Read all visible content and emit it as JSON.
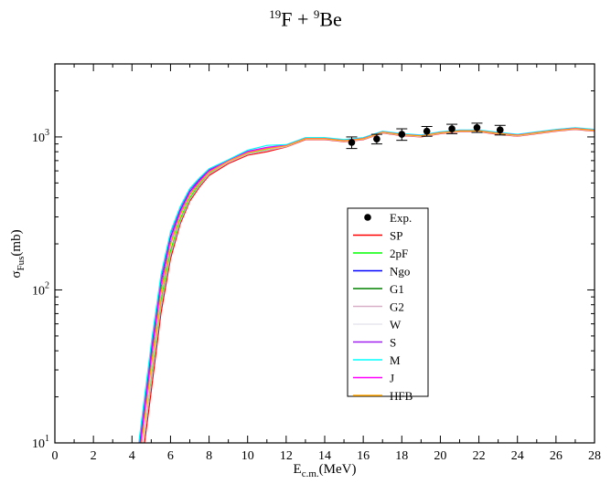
{
  "title": {
    "a_mass": "19",
    "a_symbol": "F",
    "plus": " + ",
    "b_mass": "9",
    "b_symbol": "Be"
  },
  "chart_data": {
    "type": "line",
    "xlabel": {
      "main": "E",
      "sub": "c.m.",
      "unit": "(MeV)"
    },
    "ylabel": {
      "main": "σ",
      "sub": "Fus",
      "unit": "(mb)"
    },
    "xlim": [
      0,
      28
    ],
    "ylim": [
      10,
      3000
    ],
    "yscale": "log",
    "x_ticks": [
      0,
      2,
      4,
      6,
      8,
      10,
      12,
      14,
      16,
      18,
      20,
      22,
      24,
      26,
      28
    ],
    "y_ticks": [
      {
        "value": 10,
        "base": "10",
        "exp": "1"
      },
      {
        "value": 100,
        "base": "10",
        "exp": "2"
      },
      {
        "value": 1000,
        "base": "10",
        "exp": "3"
      }
    ],
    "grid": false,
    "legend_position": "center",
    "experiment": {
      "name": "Exp.",
      "x": [
        15.4,
        16.7,
        18.0,
        19.3,
        20.6,
        21.9,
        23.1
      ],
      "y": [
        920,
        970,
        1040,
        1090,
        1130,
        1150,
        1110
      ],
      "err": [
        80,
        70,
        90,
        80,
        80,
        80,
        80
      ]
    },
    "series": [
      {
        "name": "SP",
        "color": "#ff0000",
        "x": [
          4.65,
          5.0,
          5.5,
          6.0,
          6.5,
          7.0,
          7.5,
          8.0,
          9.0,
          10.0,
          11.0,
          12.0,
          13.0,
          14.0,
          15.0,
          16.0,
          17.0,
          18.0,
          19.0,
          20.0,
          21.0,
          22.0,
          23.0,
          24.0,
          25.0,
          26.0,
          27.0,
          28.0
        ],
        "y": [
          10,
          22,
          70,
          160,
          270,
          380,
          470,
          560,
          670,
          760,
          800,
          860,
          960,
          960,
          930,
          960,
          1060,
          1020,
          1000,
          1050,
          1080,
          1080,
          1040,
          1010,
          1050,
          1090,
          1120,
          1090
        ]
      },
      {
        "name": "2pF",
        "color": "#00ff00",
        "x": [
          4.55,
          5.0,
          5.5,
          6.0,
          6.5,
          7.0,
          7.5,
          8.0,
          9.0,
          10.0,
          11.0,
          12.0,
          13.0,
          14.0,
          15.0,
          16.0,
          17.0,
          18.0,
          19.0,
          20.0,
          21.0,
          22.0,
          23.0,
          24.0,
          25.0,
          26.0,
          27.0,
          28.0
        ],
        "y": [
          10,
          28,
          85,
          180,
          290,
          400,
          490,
          580,
          690,
          780,
          830,
          870,
          970,
          970,
          940,
          970,
          1070,
          1030,
          1010,
          1060,
          1090,
          1090,
          1050,
          1020,
          1060,
          1100,
          1130,
          1100
        ]
      },
      {
        "name": "Ngo",
        "color": "#0000ff",
        "x": [
          4.45,
          5.0,
          5.5,
          6.0,
          6.5,
          7.0,
          7.5,
          8.0,
          9.0,
          10.0,
          11.0,
          12.0,
          13.0,
          14.0,
          15.0,
          16.0,
          17.0,
          18.0,
          19.0,
          20.0,
          21.0,
          22.0,
          23.0,
          24.0,
          25.0,
          26.0,
          27.0,
          28.0
        ],
        "y": [
          10,
          38,
          110,
          220,
          330,
          440,
          520,
          600,
          700,
          800,
          850,
          880,
          980,
          980,
          950,
          980,
          1080,
          1040,
          1020,
          1070,
          1100,
          1100,
          1060,
          1030,
          1070,
          1110,
          1140,
          1110
        ]
      },
      {
        "name": "G1",
        "color": "#008000",
        "x": [
          4.5,
          5.0,
          5.5,
          6.0,
          6.5,
          7.0,
          7.5,
          8.0,
          9.0,
          10.0,
          11.0,
          12.0,
          13.0,
          14.0,
          15.0,
          16.0,
          17.0,
          18.0,
          19.0,
          20.0,
          21.0,
          22.0,
          23.0,
          24.0,
          25.0,
          26.0,
          27.0,
          28.0
        ],
        "y": [
          10,
          33,
          98,
          200,
          310,
          420,
          505,
          590,
          695,
          790,
          840,
          875,
          975,
          975,
          945,
          975,
          1075,
          1035,
          1015,
          1065,
          1095,
          1095,
          1055,
          1025,
          1065,
          1105,
          1135,
          1105
        ]
      },
      {
        "name": "G2",
        "color": "#d8b0c8",
        "x": [
          4.6,
          5.0,
          5.5,
          6.0,
          6.5,
          7.0,
          7.5,
          8.0,
          9.0,
          10.0,
          11.0,
          12.0,
          13.0,
          14.0,
          15.0,
          16.0,
          17.0,
          18.0,
          19.0,
          20.0,
          21.0,
          22.0,
          23.0,
          24.0,
          25.0,
          26.0,
          27.0,
          28.0
        ],
        "y": [
          10,
          25,
          78,
          170,
          280,
          390,
          480,
          570,
          680,
          770,
          815,
          865,
          965,
          965,
          935,
          965,
          1065,
          1025,
          1005,
          1055,
          1085,
          1085,
          1045,
          1015,
          1055,
          1095,
          1125,
          1095
        ]
      },
      {
        "name": "W",
        "color": "#e6e6ee",
        "x": [
          4.55,
          5.0,
          5.5,
          6.0,
          6.5,
          7.0,
          7.5,
          8.0,
          9.0,
          10.0,
          11.0,
          12.0,
          13.0,
          14.0,
          15.0,
          16.0,
          17.0,
          18.0,
          19.0,
          20.0,
          21.0,
          22.0,
          23.0,
          24.0,
          25.0,
          26.0,
          27.0,
          28.0
        ],
        "y": [
          10,
          30,
          92,
          195,
          305,
          415,
          500,
          585,
          690,
          785,
          835,
          872,
          972,
          972,
          942,
          972,
          1072,
          1032,
          1012,
          1062,
          1092,
          1092,
          1052,
          1022,
          1062,
          1102,
          1132,
          1102
        ]
      },
      {
        "name": "S",
        "color": "#a020f0",
        "x": [
          4.4,
          5.0,
          5.5,
          6.0,
          6.5,
          7.0,
          7.5,
          8.0,
          9.0,
          10.0,
          11.0,
          12.0,
          13.0,
          14.0,
          15.0,
          16.0,
          17.0,
          18.0,
          19.0,
          20.0,
          21.0,
          22.0,
          23.0,
          24.0,
          25.0,
          26.0,
          27.0,
          28.0
        ],
        "y": [
          10,
          42,
          120,
          235,
          345,
          455,
          530,
          610,
          705,
          805,
          855,
          885,
          985,
          985,
          955,
          985,
          1085,
          1045,
          1025,
          1075,
          1105,
          1105,
          1065,
          1035,
          1075,
          1115,
          1145,
          1115
        ]
      },
      {
        "name": "M",
        "color": "#00ffff",
        "x": [
          4.35,
          5.0,
          5.5,
          6.0,
          6.5,
          7.0,
          7.5,
          8.0,
          9.0,
          10.0,
          11.0,
          12.0,
          13.0,
          14.0,
          15.0,
          16.0,
          17.0,
          18.0,
          19.0,
          20.0,
          21.0,
          22.0,
          23.0,
          24.0,
          25.0,
          26.0,
          27.0,
          28.0
        ],
        "y": [
          10,
          45,
          125,
          240,
          350,
          460,
          540,
          620,
          710,
          820,
          880,
          890,
          990,
          990,
          960,
          990,
          1090,
          1050,
          1030,
          1080,
          1110,
          1110,
          1070,
          1040,
          1080,
          1120,
          1150,
          1120
        ]
      },
      {
        "name": "J",
        "color": "#ff00ff",
        "x": [
          4.45,
          5.0,
          5.5,
          6.0,
          6.5,
          7.0,
          7.5,
          8.0,
          9.0,
          10.0,
          11.0,
          12.0,
          13.0,
          14.0,
          15.0,
          16.0,
          17.0,
          18.0,
          19.0,
          20.0,
          21.0,
          22.0,
          23.0,
          24.0,
          25.0,
          26.0,
          27.0,
          28.0
        ],
        "y": [
          10,
          37,
          108,
          215,
          325,
          435,
          515,
          598,
          698,
          798,
          848,
          878,
          978,
          978,
          948,
          978,
          1078,
          1038,
          1018,
          1068,
          1098,
          1098,
          1058,
          1028,
          1068,
          1108,
          1138,
          1108
        ]
      },
      {
        "name": "HFB",
        "color": "#ffa500",
        "x": [
          4.5,
          5.0,
          5.5,
          6.0,
          6.5,
          7.0,
          7.5,
          8.0,
          9.0,
          10.0,
          11.0,
          12.0,
          13.0,
          14.0,
          15.0,
          16.0,
          17.0,
          18.0,
          19.0,
          20.0,
          21.0,
          22.0,
          23.0,
          24.0,
          25.0,
          26.0,
          27.0,
          28.0
        ],
        "y": [
          10,
          32,
          95,
          198,
          308,
          418,
          502,
          588,
          693,
          788,
          838,
          874,
          974,
          974,
          944,
          974,
          1074,
          1034,
          1014,
          1064,
          1094,
          1094,
          1054,
          1024,
          1064,
          1104,
          1134,
          1104
        ]
      }
    ]
  }
}
